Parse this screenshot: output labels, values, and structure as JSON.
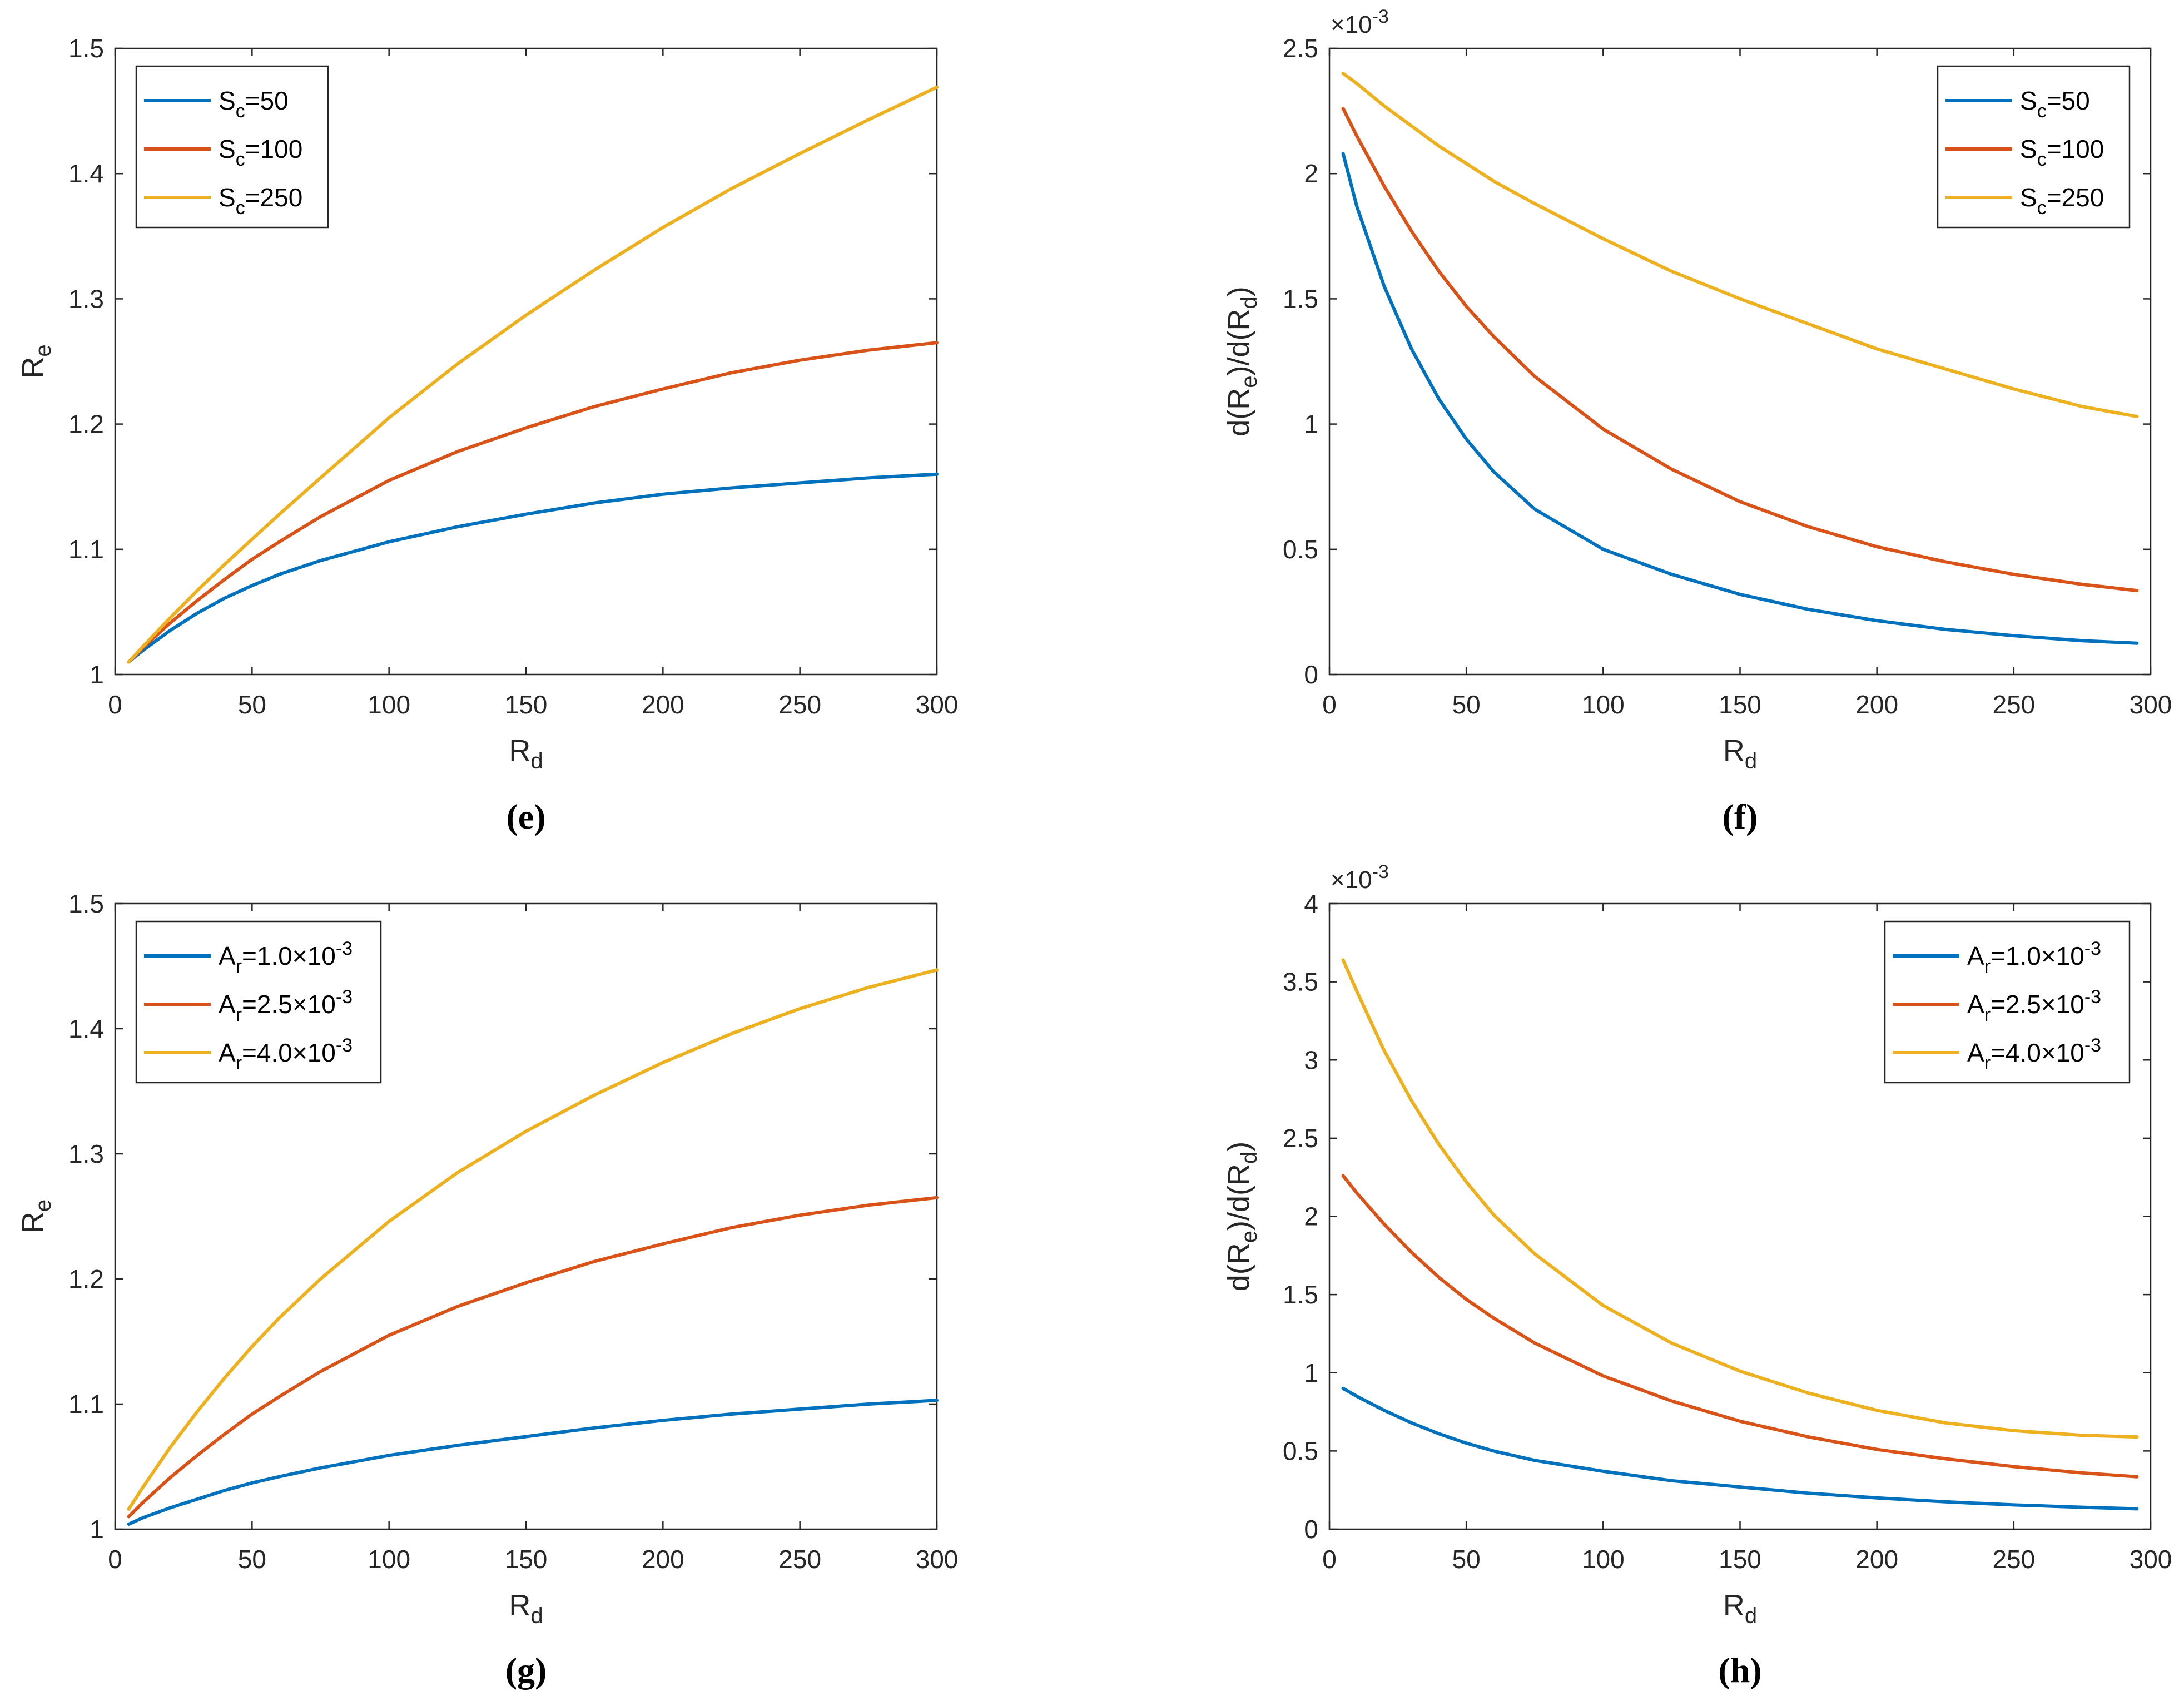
{
  "chart_data": [
    {
      "type": "line",
      "panel_label": "(e)",
      "xlabel": {
        "main": "R",
        "sub": "d"
      },
      "ylabel": {
        "main": "R",
        "sub": "e"
      },
      "xlim": [
        0,
        300
      ],
      "ylim": [
        1,
        1.5
      ],
      "xticks": [
        0,
        50,
        100,
        150,
        200,
        250,
        300
      ],
      "yticks": [
        1,
        1.1,
        1.2,
        1.3,
        1.4,
        1.5
      ],
      "ytick_labels": [
        "1",
        "1.1",
        "1.2",
        "1.3",
        "1.4",
        "1.5"
      ],
      "exponent_label": null,
      "legend_position": "top-left",
      "series": [
        {
          "name": "S_c=50",
          "legend": {
            "main": "S",
            "sub": "c",
            "rest": "=50"
          },
          "color": "#0072BD",
          "x": [
            5,
            10,
            20,
            30,
            40,
            50,
            60,
            75,
            100,
            125,
            150,
            175,
            200,
            225,
            250,
            275,
            300
          ],
          "y": [
            1.01,
            1.019,
            1.035,
            1.049,
            1.061,
            1.071,
            1.08,
            1.091,
            1.106,
            1.118,
            1.128,
            1.137,
            1.144,
            1.149,
            1.153,
            1.157,
            1.16
          ]
        },
        {
          "name": "S_c=100",
          "legend": {
            "main": "S",
            "sub": "c",
            "rest": "=100"
          },
          "color": "#D95319",
          "x": [
            5,
            10,
            20,
            30,
            40,
            50,
            60,
            75,
            100,
            125,
            150,
            175,
            200,
            225,
            250,
            275,
            300
          ],
          "y": [
            1.01,
            1.021,
            1.041,
            1.059,
            1.076,
            1.092,
            1.106,
            1.126,
            1.155,
            1.178,
            1.197,
            1.214,
            1.228,
            1.241,
            1.251,
            1.259,
            1.265
          ]
        },
        {
          "name": "S_c=250",
          "legend": {
            "main": "S",
            "sub": "c",
            "rest": "=250"
          },
          "color": "#EDB120",
          "x": [
            5,
            10,
            20,
            30,
            40,
            50,
            60,
            75,
            100,
            125,
            150,
            175,
            200,
            225,
            250,
            275,
            300
          ],
          "y": [
            1.01,
            1.022,
            1.045,
            1.067,
            1.088,
            1.108,
            1.128,
            1.157,
            1.205,
            1.248,
            1.287,
            1.323,
            1.357,
            1.388,
            1.416,
            1.443,
            1.469
          ]
        }
      ]
    },
    {
      "type": "line",
      "panel_label": "(f)",
      "xlabel": {
        "main": "R",
        "sub": "d"
      },
      "ylabel": {
        "main": "d(R",
        "sub": "e",
        "mid": ")/d(R",
        "sub2": "d",
        "end": ")"
      },
      "xlim": [
        0,
        300
      ],
      "ylim": [
        0,
        2.5
      ],
      "xticks": [
        0,
        50,
        100,
        150,
        200,
        250,
        300
      ],
      "yticks": [
        0,
        0.5,
        1,
        1.5,
        2,
        2.5
      ],
      "ytick_labels": [
        "0",
        "0.5",
        "1",
        "1.5",
        "2",
        "2.5"
      ],
      "exponent_label": {
        "base": "×10",
        "power": "-3"
      },
      "legend_position": "top-right",
      "series": [
        {
          "name": "S_c=50",
          "legend": {
            "main": "S",
            "sub": "c",
            "rest": "=50"
          },
          "color": "#0072BD",
          "x": [
            5,
            10,
            20,
            30,
            40,
            50,
            60,
            75,
            100,
            125,
            150,
            175,
            200,
            225,
            250,
            275,
            295
          ],
          "y": [
            2.08,
            1.87,
            1.55,
            1.3,
            1.1,
            0.94,
            0.81,
            0.66,
            0.5,
            0.4,
            0.32,
            0.26,
            0.215,
            0.18,
            0.155,
            0.135,
            0.125
          ]
        },
        {
          "name": "S_c=100",
          "legend": {
            "main": "S",
            "sub": "c",
            "rest": "=100"
          },
          "color": "#D95319",
          "x": [
            5,
            10,
            20,
            30,
            40,
            50,
            60,
            75,
            100,
            125,
            150,
            175,
            200,
            225,
            250,
            275,
            295
          ],
          "y": [
            2.26,
            2.15,
            1.95,
            1.77,
            1.61,
            1.47,
            1.35,
            1.19,
            0.98,
            0.82,
            0.69,
            0.59,
            0.51,
            0.45,
            0.4,
            0.36,
            0.335
          ]
        },
        {
          "name": "S_c=250",
          "legend": {
            "main": "S",
            "sub": "c",
            "rest": "=250"
          },
          "color": "#EDB120",
          "x": [
            5,
            10,
            20,
            30,
            40,
            50,
            60,
            75,
            100,
            125,
            150,
            175,
            200,
            225,
            250,
            275,
            295
          ],
          "y": [
            2.4,
            2.36,
            2.27,
            2.19,
            2.11,
            2.04,
            1.97,
            1.88,
            1.74,
            1.61,
            1.5,
            1.4,
            1.3,
            1.22,
            1.14,
            1.07,
            1.03
          ]
        }
      ]
    },
    {
      "type": "line",
      "panel_label": "(g)",
      "xlabel": {
        "main": "R",
        "sub": "d"
      },
      "ylabel": {
        "main": "R",
        "sub": "e"
      },
      "xlim": [
        0,
        300
      ],
      "ylim": [
        1,
        1.5
      ],
      "xticks": [
        0,
        50,
        100,
        150,
        200,
        250,
        300
      ],
      "yticks": [
        1,
        1.1,
        1.2,
        1.3,
        1.4,
        1.5
      ],
      "ytick_labels": [
        "1",
        "1.1",
        "1.2",
        "1.3",
        "1.4",
        "1.5"
      ],
      "exponent_label": null,
      "legend_position": "top-left",
      "series": [
        {
          "name": "A_r=1.0×10^-3",
          "legend": {
            "main": "A",
            "sub": "r",
            "rest": "=1.0×10",
            "sup": "-3"
          },
          "color": "#0072BD",
          "x": [
            5,
            10,
            20,
            30,
            40,
            50,
            60,
            75,
            100,
            125,
            150,
            175,
            200,
            225,
            250,
            275,
            300
          ],
          "y": [
            1.004,
            1.009,
            1.017,
            1.024,
            1.031,
            1.037,
            1.042,
            1.049,
            1.059,
            1.067,
            1.074,
            1.081,
            1.087,
            1.092,
            1.096,
            1.1,
            1.103
          ]
        },
        {
          "name": "A_r=2.5×10^-3",
          "legend": {
            "main": "A",
            "sub": "r",
            "rest": "=2.5×10",
            "sup": "-3"
          },
          "color": "#D95319",
          "x": [
            5,
            10,
            20,
            30,
            40,
            50,
            60,
            75,
            100,
            125,
            150,
            175,
            200,
            225,
            250,
            275,
            300
          ],
          "y": [
            1.01,
            1.021,
            1.041,
            1.059,
            1.076,
            1.092,
            1.106,
            1.126,
            1.155,
            1.178,
            1.197,
            1.214,
            1.228,
            1.241,
            1.251,
            1.259,
            1.265
          ]
        },
        {
          "name": "A_r=4.0×10^-3",
          "legend": {
            "main": "A",
            "sub": "r",
            "rest": "=4.0×10",
            "sup": "-3"
          },
          "color": "#EDB120",
          "x": [
            5,
            10,
            20,
            30,
            40,
            50,
            60,
            75,
            100,
            125,
            150,
            175,
            200,
            225,
            250,
            275,
            300
          ],
          "y": [
            1.016,
            1.033,
            1.065,
            1.094,
            1.121,
            1.146,
            1.169,
            1.2,
            1.246,
            1.285,
            1.318,
            1.347,
            1.373,
            1.396,
            1.416,
            1.433,
            1.447
          ]
        }
      ]
    },
    {
      "type": "line",
      "panel_label": "(h)",
      "xlabel": {
        "main": "R",
        "sub": "d"
      },
      "ylabel": {
        "main": "d(R",
        "sub": "e",
        "mid": ")/d(R",
        "sub2": "d",
        "end": ")"
      },
      "xlim": [
        0,
        300
      ],
      "ylim": [
        0,
        4
      ],
      "xticks": [
        0,
        50,
        100,
        150,
        200,
        250,
        300
      ],
      "yticks": [
        0,
        0.5,
        1,
        1.5,
        2,
        2.5,
        3,
        3.5,
        4
      ],
      "ytick_labels": [
        "0",
        "0.5",
        "1",
        "1.5",
        "2",
        "2.5",
        "3",
        "3.5",
        "4"
      ],
      "exponent_label": {
        "base": "×10",
        "power": "-3"
      },
      "legend_position": "top-right",
      "series": [
        {
          "name": "A_r=1.0×10^-3",
          "legend": {
            "main": "A",
            "sub": "r",
            "rest": "=1.0×10",
            "sup": "-3"
          },
          "color": "#0072BD",
          "x": [
            5,
            10,
            20,
            30,
            40,
            50,
            60,
            75,
            100,
            125,
            150,
            175,
            200,
            225,
            250,
            275,
            295
          ],
          "y": [
            0.9,
            0.85,
            0.76,
            0.68,
            0.61,
            0.55,
            0.5,
            0.44,
            0.37,
            0.31,
            0.27,
            0.23,
            0.2,
            0.175,
            0.155,
            0.14,
            0.13
          ]
        },
        {
          "name": "A_r=2.5×10^-3",
          "legend": {
            "main": "A",
            "sub": "r",
            "rest": "=2.5×10",
            "sup": "-3"
          },
          "color": "#D95319",
          "x": [
            5,
            10,
            20,
            30,
            40,
            50,
            60,
            75,
            100,
            125,
            150,
            175,
            200,
            225,
            250,
            275,
            295
          ],
          "y": [
            2.26,
            2.15,
            1.95,
            1.77,
            1.61,
            1.47,
            1.35,
            1.19,
            0.98,
            0.82,
            0.69,
            0.59,
            0.51,
            0.45,
            0.4,
            0.36,
            0.335
          ]
        },
        {
          "name": "A_r=4.0×10^-3",
          "legend": {
            "main": "A",
            "sub": "r",
            "rest": "=4.0×10",
            "sup": "-3"
          },
          "color": "#EDB120",
          "x": [
            5,
            10,
            20,
            30,
            40,
            50,
            60,
            75,
            100,
            125,
            150,
            175,
            200,
            225,
            250,
            275,
            295
          ],
          "y": [
            3.64,
            3.44,
            3.06,
            2.74,
            2.46,
            2.22,
            2.01,
            1.76,
            1.43,
            1.19,
            1.01,
            0.87,
            0.76,
            0.68,
            0.63,
            0.6,
            0.59
          ]
        }
      ]
    }
  ]
}
